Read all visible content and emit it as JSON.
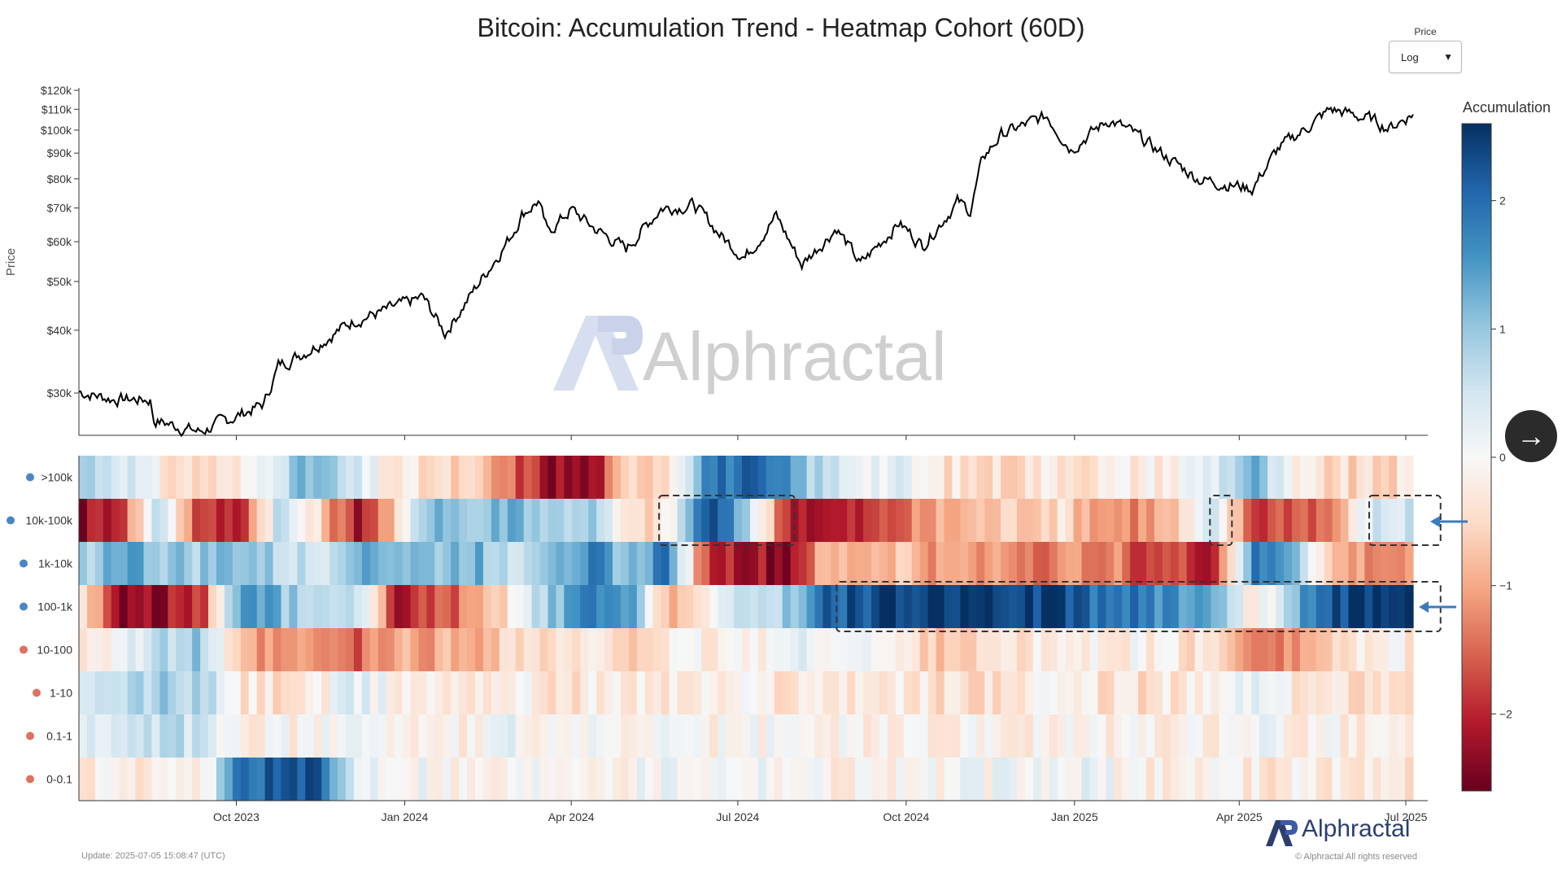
{
  "title": "Bitcoin: Accumulation Trend - Heatmap Cohort (60D)",
  "price_selector": {
    "label": "Price",
    "value": "Log"
  },
  "colorbar": {
    "title": "Accumulation",
    "ticks": [
      "2",
      "1",
      "0",
      "−1",
      "−2"
    ]
  },
  "watermark": {
    "text": "Alphractal"
  },
  "footer": {
    "update_text": "Update: 2025-07-05 15:08:47 (UTC)",
    "brand_name": "Alphractal",
    "copyright": "© Alphractal All rights reserved"
  },
  "chart_data": [
    {
      "type": "line",
      "ylabel": "Price",
      "y_scale": "log",
      "y_ticks": [
        "$30k",
        "$40k",
        "$50k",
        "$60k",
        "$70k",
        "$80k",
        "$90k",
        "$100k",
        "$110k",
        "$120k"
      ],
      "y_tick_values": [
        30000,
        40000,
        50000,
        60000,
        70000,
        80000,
        90000,
        100000,
        110000,
        120000
      ],
      "x_range": [
        "2023-07-07",
        "2025-07-05"
      ],
      "series": [
        {
          "x": [
            "2023-07-07",
            "2023-07-25",
            "2023-08-15",
            "2023-08-17",
            "2023-09-11",
            "2023-10-01",
            "2023-10-16",
            "2023-10-24",
            "2023-11-09",
            "2023-12-05",
            "2023-12-20",
            "2024-01-11",
            "2024-01-23",
            "2024-02-14",
            "2024-02-28",
            "2024-03-05",
            "2024-03-14",
            "2024-03-19",
            "2024-04-01",
            "2024-04-13",
            "2024-05-01",
            "2024-05-20",
            "2024-06-07",
            "2024-06-24",
            "2024-07-05",
            "2024-07-22",
            "2024-08-05",
            "2024-08-24",
            "2024-09-06",
            "2024-09-27",
            "2024-10-10",
            "2024-10-29",
            "2024-11-05",
            "2024-11-12",
            "2024-11-22",
            "2024-12-17",
            "2024-12-30",
            "2025-01-20",
            "2025-02-03",
            "2025-02-28",
            "2025-03-10",
            "2025-04-08",
            "2025-04-22",
            "2025-05-21",
            "2025-06-12",
            "2025-06-22",
            "2025-07-05"
          ],
          "y": [
            30200,
            29200,
            29100,
            26500,
            25100,
            27000,
            28500,
            34000,
            36500,
            42000,
            43500,
            46500,
            39500,
            51800,
            61500,
            68000,
            72300,
            62500,
            69500,
            64000,
            58000,
            70000,
            71000,
            60500,
            56000,
            67500,
            54000,
            64000,
            54000,
            65500,
            59000,
            72000,
            69000,
            88000,
            98000,
            106500,
            92000,
            105000,
            98000,
            84500,
            80000,
            76500,
            91500,
            110000,
            105000,
            101000,
            108000
          ]
        }
      ]
    },
    {
      "type": "heatmap",
      "title": "Accumulation Trend",
      "rows": [
        ">100k",
        "10k-100k",
        "1k-10k",
        "100-1k",
        "10-100",
        "1-10",
        "0.1-1",
        "0-0.1"
      ],
      "x_ticks": [
        "Oct 2023",
        "Jan 2024",
        "Apr 2024",
        "Jul 2024",
        "Oct 2024",
        "Jan 2025",
        "Apr 2025",
        "Jul 2025"
      ],
      "x_range": [
        "2023-07-07",
        "2025-07-05"
      ],
      "color_range": [
        -2.6,
        2.6
      ],
      "colorscale": [
        "#67001f",
        "#b2182b",
        "#d6604d",
        "#f4a582",
        "#fddbc7",
        "#f7f7f7",
        "#d1e5f0",
        "#92c5de",
        "#4393c3",
        "#2166ac",
        "#053061"
      ],
      "values": [
        [
          0.9,
          0.6,
          -0.3,
          -0.5,
          -0.4,
          0.7,
          1.2,
          0.3,
          -0.3,
          -0.5,
          -0.7,
          -1.5,
          -2.2,
          -2.4,
          -0.6,
          -0.3,
          1.8,
          2.0,
          1.5,
          0.6,
          0.3,
          0.2,
          -0.3,
          -0.5,
          -0.4,
          -0.2,
          -0.3,
          -0.2,
          -0.1,
          0.4,
          1.3,
          -0.3,
          -0.5,
          -0.6,
          -0.4
        ],
        [
          -2.3,
          -1.7,
          0.9,
          -1.9,
          -2.0,
          0.7,
          -0.5,
          -2.1,
          -0.8,
          1.5,
          0.8,
          1.4,
          0.8,
          1.0,
          -0.6,
          -0.3,
          2.4,
          1.0,
          -1.8,
          -2.2,
          -2.0,
          -1.5,
          -1.0,
          -0.8,
          -0.6,
          -0.4,
          -1.0,
          -1.2,
          -0.8,
          0.4,
          -1.8,
          -1.5,
          -1.4,
          0.4,
          0.5
        ],
        [
          0.8,
          1.5,
          1.0,
          0.9,
          1.2,
          0.7,
          0.4,
          1.5,
          1.2,
          1.0,
          1.3,
          0.6,
          1.3,
          1.8,
          0.9,
          2.0,
          -1.9,
          -2.1,
          -2.4,
          -1.0,
          -0.9,
          -0.7,
          -1.2,
          -1.0,
          -1.2,
          -1.4,
          -1.1,
          -1.6,
          -1.8,
          -2.0,
          1.7,
          1.5,
          -0.9,
          -1.2,
          -1.3
        ],
        [
          -0.3,
          -2.4,
          -2.2,
          -2.0,
          1.6,
          1.2,
          0.4,
          0.9,
          -2.0,
          -1.8,
          -1.2,
          -0.3,
          1.0,
          1.7,
          1.4,
          -0.8,
          -0.3,
          0.5,
          0.9,
          2.0,
          2.3,
          2.5,
          2.6,
          2.6,
          2.5,
          2.4,
          2.0,
          1.8,
          1.6,
          1.5,
          -0.4,
          1.0,
          2.4,
          2.4,
          2.3
        ],
        [
          -0.2,
          0.2,
          0.6,
          1.0,
          -1.0,
          -1.3,
          -1.2,
          -1.6,
          -1.0,
          -1.0,
          -0.9,
          -0.4,
          -0.5,
          -0.4,
          -0.5,
          -0.3,
          -0.2,
          -0.1,
          0.1,
          0.2,
          0.1,
          -0.3,
          -0.6,
          -0.5,
          -0.4,
          -0.2,
          -0.2,
          -0.1,
          -0.3,
          -0.5,
          -1.1,
          -1.2,
          -0.6,
          -0.3,
          -0.2
        ],
        [
          0.2,
          0.6,
          0.9,
          0.8,
          -0.3,
          -0.4,
          -0.3,
          0.3,
          -0.1,
          -0.2,
          -0.2,
          -0.1,
          -0.3,
          -0.3,
          -0.2,
          -0.3,
          -0.2,
          -0.2,
          -0.3,
          -0.2,
          -0.2,
          -0.3,
          -0.4,
          -0.4,
          -0.3,
          -0.2,
          -0.3,
          -0.4,
          -0.3,
          -0.2,
          0.3,
          -0.3,
          -0.4,
          -0.3,
          -0.3
        ],
        [
          0.2,
          0.4,
          0.6,
          0.6,
          -0.1,
          -0.1,
          -0.2,
          0.5,
          -0.1,
          -0.1,
          -0.1,
          0.1,
          0.0,
          -0.1,
          0.0,
          -0.1,
          -0.1,
          -0.1,
          -0.1,
          -0.1,
          -0.1,
          -0.2,
          -0.1,
          -0.2,
          -0.1,
          -0.2,
          -0.1,
          -0.1,
          -0.1,
          -0.1,
          0.2,
          -0.1,
          -0.1,
          -0.2,
          -0.1
        ],
        [
          -0.2,
          -0.3,
          -0.3,
          -0.4,
          2.0,
          2.2,
          2.1,
          0.3,
          0.2,
          0.1,
          -0.2,
          -0.1,
          0.1,
          0.1,
          0.0,
          0.2,
          0.1,
          0.2,
          0.1,
          -0.1,
          -0.1,
          0.0,
          -0.1,
          0.1,
          0.0,
          0.1,
          0.1,
          -0.1,
          -0.2,
          0.0,
          -0.2,
          -0.3,
          -0.3,
          -0.2,
          -0.4
        ]
      ],
      "highlighted_regions": [
        {
          "row": "10k-100k",
          "start": "2024-05-19",
          "end": "2024-08-01"
        },
        {
          "row": "10k-100k",
          "start": "2025-03-16",
          "end": "2025-03-28"
        },
        {
          "row": "10k-100k",
          "start": "2025-06-11",
          "end": "2025-07-20"
        },
        {
          "row": "100-1k",
          "start": "2024-08-24",
          "end": "2025-07-20"
        }
      ]
    }
  ]
}
